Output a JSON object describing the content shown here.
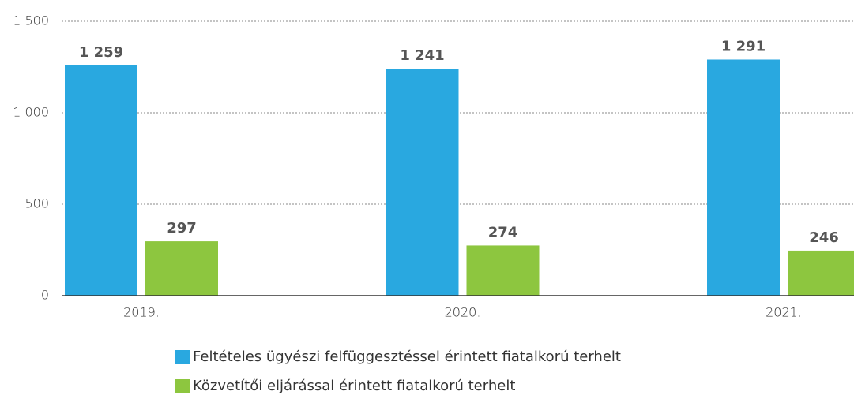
{
  "chart_data": {
    "type": "bar",
    "categories": [
      "2019.",
      "2020.",
      "2021."
    ],
    "series": [
      {
        "name": "Feltételes ügyészi felfüggesztéssel érintett fiatalkorú terhelt",
        "color": "#29a8e0",
        "values": [
          1259,
          1241,
          1291
        ],
        "value_labels": [
          "1 259",
          "1 241",
          "1 291"
        ]
      },
      {
        "name": "Közvetítői eljárással érintett fiatalkorú terhelt",
        "color": "#8dc63f",
        "values": [
          297,
          274,
          246
        ]
      }
    ],
    "ylim": [
      0,
      1500
    ],
    "yticks": [
      0,
      500,
      {
        "value": 1000,
        "label": "1 000"
      },
      {
        "value": 1500,
        "label": "1 500"
      }
    ],
    "grid": true
  }
}
